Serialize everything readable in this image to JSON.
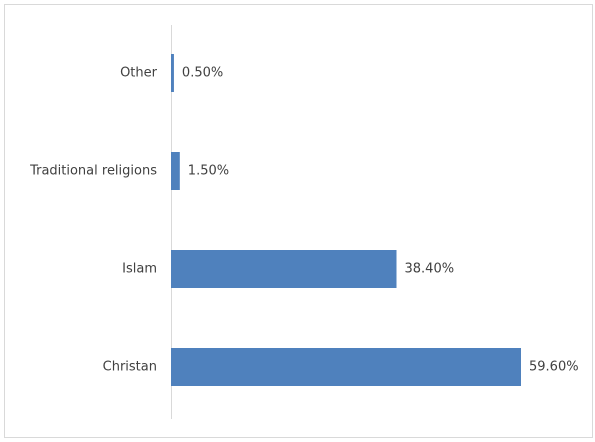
{
  "chart_data": {
    "type": "bar",
    "orientation": "horizontal",
    "categories": [
      "Other",
      "Traditional religions",
      "Islam",
      "Christan"
    ],
    "values": [
      0.5,
      1.5,
      38.4,
      59.6
    ],
    "value_labels": [
      "0.50%",
      "1.50%",
      "38.40%",
      "59.60%"
    ],
    "xlim": [
      0,
      60
    ],
    "grid": false,
    "legend": "none",
    "bar_color": "#4f81bd"
  }
}
